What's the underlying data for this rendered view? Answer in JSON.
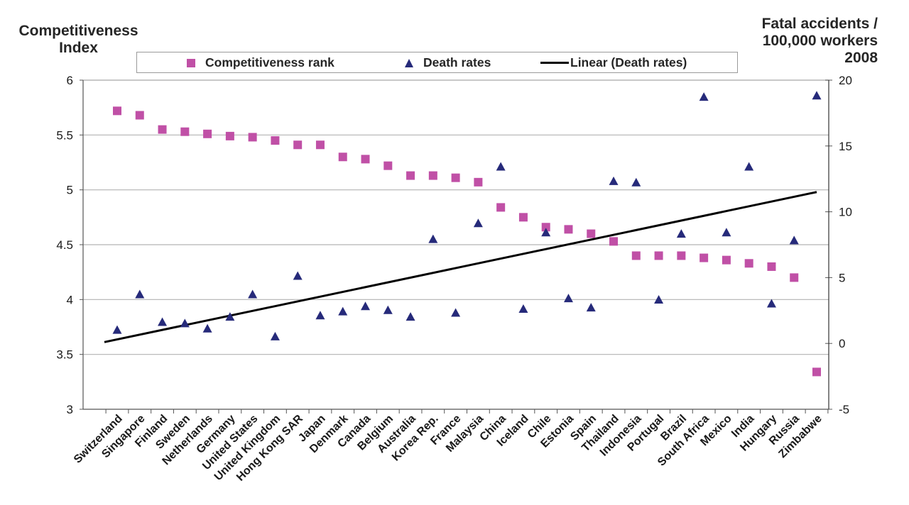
{
  "chart_data": {
    "type": "scatter",
    "title": "",
    "ylabel_left": "Competitiveness Index",
    "ylabel_right": "Fatal accidents / 100,000 workers 2008",
    "xlabel": "",
    "ylim_left": [
      3,
      6
    ],
    "ylim_right": [
      -5,
      20
    ],
    "yticks_left": [
      "3",
      "3.5",
      "4",
      "4.5",
      "5",
      "5.5",
      "6"
    ],
    "yticks_right": [
      "-5",
      "0",
      "5",
      "10",
      "15",
      "20"
    ],
    "grid": true,
    "legend_position": "top",
    "categories": [
      "Switzerland",
      "Singapore",
      "Finland",
      "Sweden",
      "Netherlands",
      "Germany",
      "United States",
      "United Kingdom",
      "Hong Kong SAR",
      "Japan",
      "Denmark",
      "Canada",
      "Belgium",
      "Australia",
      "Korea Rep.",
      "France",
      "Malaysia",
      "China",
      "Iceland",
      "Chile",
      "Estonia",
      "Spain",
      "Thailand",
      "Indonesia",
      "Portugal",
      "Brazil",
      "South Africa",
      "Mexico",
      "India",
      "Hungary",
      "Russia",
      "Zimbabwe"
    ],
    "series": [
      {
        "name": "Competitiveness rank",
        "axis": "left",
        "marker": "square",
        "color": "#c050a6",
        "values": [
          5.72,
          5.68,
          5.55,
          5.53,
          5.51,
          5.49,
          5.48,
          5.45,
          5.41,
          5.41,
          5.3,
          5.28,
          5.22,
          5.13,
          5.13,
          5.11,
          5.07,
          4.84,
          4.75,
          4.66,
          4.64,
          4.6,
          4.53,
          4.4,
          4.4,
          4.4,
          4.38,
          4.36,
          4.33,
          4.3,
          4.2,
          3.34
        ]
      },
      {
        "name": "Death rates",
        "axis": "right",
        "marker": "triangle",
        "color": "#262a7a",
        "values": [
          1.0,
          3.7,
          1.6,
          1.5,
          1.1,
          2.0,
          3.7,
          0.5,
          5.1,
          2.1,
          2.4,
          2.8,
          2.5,
          2.0,
          7.9,
          2.3,
          9.1,
          13.4,
          2.6,
          8.4,
          3.4,
          2.7,
          12.3,
          12.2,
          3.3,
          8.3,
          18.7,
          8.4,
          13.4,
          3.0,
          7.8,
          18.8
        ]
      },
      {
        "name": "Linear (Death rates)",
        "axis": "right",
        "marker": "line",
        "color": "#000000",
        "start": 0.1,
        "end": 11.5
      }
    ]
  },
  "legend": {
    "items": [
      "Competitiveness rank",
      "Death rates",
      "Linear (Death rates)"
    ]
  },
  "titles": {
    "left_line1": "Competitiveness",
    "left_line2": "Index",
    "right_line1": "Fatal accidents /",
    "right_line2": "100,000 workers",
    "right_line3": "2008"
  }
}
